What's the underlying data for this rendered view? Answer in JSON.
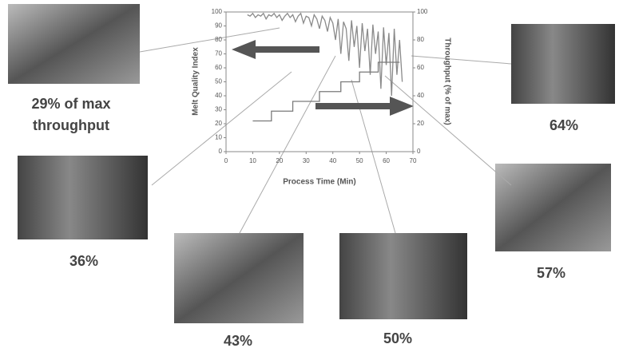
{
  "chart_data": {
    "type": "line",
    "xlabel": "Process Time (Min)",
    "ylabel": "Melt Quality Index",
    "y2label": "Throughput (% of max)",
    "xlim": [
      0,
      70
    ],
    "xticks": [
      0,
      10,
      20,
      30,
      40,
      50,
      60,
      70
    ],
    "ylim": [
      0,
      100
    ],
    "yticks": [
      0,
      10,
      20,
      30,
      40,
      50,
      60,
      70,
      80,
      90,
      100
    ],
    "y2lim": [
      0,
      100
    ],
    "y2ticks": [
      0,
      20,
      40,
      60,
      80,
      100
    ],
    "series": [
      {
        "color": "#8a8a8a",
        "x": [
          8,
          9,
          10,
          11,
          12,
          13,
          14,
          15,
          16,
          17,
          18,
          19,
          20,
          21,
          22,
          23,
          24,
          25,
          26,
          27,
          28,
          29,
          30,
          31,
          32,
          33,
          34,
          35,
          36,
          37,
          38,
          39,
          40,
          41,
          42,
          43,
          44,
          45,
          46,
          47,
          48,
          49,
          50,
          51,
          52,
          53,
          54,
          55,
          56,
          57,
          58,
          59,
          60,
          61,
          62,
          63,
          64,
          65,
          66
        ],
        "values": [
          98,
          97,
          99,
          96,
          98,
          97,
          99,
          95,
          98,
          97,
          99,
          96,
          98,
          94,
          97,
          99,
          96,
          98,
          93,
          97,
          99,
          92,
          97,
          96,
          90,
          98,
          95,
          88,
          97,
          94,
          86,
          96,
          92,
          80,
          95,
          70,
          93,
          88,
          65,
          94,
          75,
          90,
          60,
          92,
          72,
          88,
          55,
          91,
          70,
          86,
          45,
          89,
          62,
          85,
          40,
          88,
          55,
          80,
          50
        ]
      },
      {
        "color": "#7a7a7a",
        "axis": "y2",
        "x": [
          10,
          17,
          17,
          25,
          25,
          35,
          35,
          43,
          43,
          50,
          50,
          57,
          57,
          65
        ],
        "values": [
          22,
          22,
          29,
          29,
          36,
          36,
          43,
          43,
          50,
          50,
          57,
          57,
          64,
          64
        ]
      }
    ],
    "annotations": [
      "29% of max throughput",
      "36%",
      "43%",
      "50%",
      "57%",
      "64%"
    ]
  }
}
